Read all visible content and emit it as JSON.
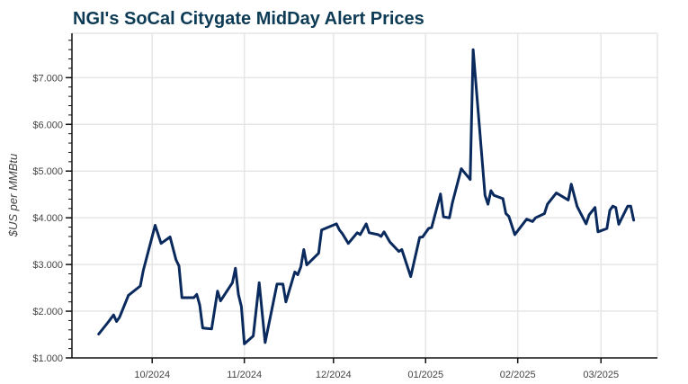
{
  "chart_data": {
    "type": "line",
    "title": "NGI's SoCal Citygate MidDay Alert Prices",
    "xlabel": "",
    "ylabel": "$US per MMBtu",
    "xlim": [
      "2024-09-04",
      "2025-03-20"
    ],
    "ylim": [
      1.0,
      7.95
    ],
    "grid": true,
    "line_color": "#0a2a5e",
    "title_color": "#0d3b55",
    "y_ticks": [
      {
        "value": 1,
        "label": "$1.000"
      },
      {
        "value": 2,
        "label": "$2.000"
      },
      {
        "value": 3,
        "label": "$3.000"
      },
      {
        "value": 4,
        "label": "$4.000"
      },
      {
        "value": 5,
        "label": "$5.000"
      },
      {
        "value": 6,
        "label": "$6.000"
      },
      {
        "value": 7,
        "label": "$7.000"
      }
    ],
    "x_ticks": [
      {
        "date": "2024-10-01",
        "label": "10/2024"
      },
      {
        "date": "2024-11-01",
        "label": "11/2024"
      },
      {
        "date": "2024-12-01",
        "label": "12/2024"
      },
      {
        "date": "2025-01-01",
        "label": "01/2025"
      },
      {
        "date": "2025-02-01",
        "label": "02/2025"
      },
      {
        "date": "2025-03-01",
        "label": "03/2025"
      }
    ],
    "series": [
      {
        "points": [
          [
            "2024-09-13",
            1.51
          ],
          [
            "2024-09-16",
            1.75
          ],
          [
            "2024-09-18",
            1.92
          ],
          [
            "2024-09-19",
            1.78
          ],
          [
            "2024-09-20",
            1.87
          ],
          [
            "2024-09-23",
            2.34
          ],
          [
            "2024-09-27",
            2.54
          ],
          [
            "2024-09-28",
            2.87
          ],
          [
            "2024-10-02",
            3.84
          ],
          [
            "2024-10-04",
            3.45
          ],
          [
            "2024-10-07",
            3.59
          ],
          [
            "2024-10-09",
            3.1
          ],
          [
            "2024-10-10",
            2.97
          ],
          [
            "2024-10-11",
            2.29
          ],
          [
            "2024-10-15",
            2.29
          ],
          [
            "2024-10-16",
            2.36
          ],
          [
            "2024-10-17",
            2.13
          ],
          [
            "2024-10-18",
            1.64
          ],
          [
            "2024-10-21",
            1.62
          ],
          [
            "2024-10-23",
            2.43
          ],
          [
            "2024-10-24",
            2.22
          ],
          [
            "2024-10-28",
            2.61
          ],
          [
            "2024-10-29",
            2.92
          ],
          [
            "2024-10-30",
            2.36
          ],
          [
            "2024-10-31",
            2.1
          ],
          [
            "2024-11-01",
            1.3
          ],
          [
            "2024-11-04",
            1.47
          ],
          [
            "2024-11-06",
            2.61
          ],
          [
            "2024-11-08",
            1.33
          ],
          [
            "2024-11-12",
            2.58
          ],
          [
            "2024-11-14",
            2.58
          ],
          [
            "2024-11-15",
            2.2
          ],
          [
            "2024-11-18",
            2.84
          ],
          [
            "2024-11-19",
            2.78
          ],
          [
            "2024-11-20",
            2.95
          ],
          [
            "2024-11-21",
            3.32
          ],
          [
            "2024-11-22",
            2.99
          ],
          [
            "2024-11-26",
            3.24
          ],
          [
            "2024-11-27",
            3.74
          ],
          [
            "2024-12-02",
            3.87
          ],
          [
            "2024-12-03",
            3.74
          ],
          [
            "2024-12-04",
            3.66
          ],
          [
            "2024-12-06",
            3.45
          ],
          [
            "2024-12-09",
            3.68
          ],
          [
            "2024-12-10",
            3.64
          ],
          [
            "2024-12-12",
            3.87
          ],
          [
            "2024-12-13",
            3.68
          ],
          [
            "2024-12-16",
            3.64
          ],
          [
            "2024-12-17",
            3.6
          ],
          [
            "2024-12-18",
            3.7
          ],
          [
            "2024-12-20",
            3.48
          ],
          [
            "2024-12-23",
            3.28
          ],
          [
            "2024-12-24",
            3.32
          ],
          [
            "2024-12-27",
            2.74
          ],
          [
            "2024-12-30",
            3.58
          ],
          [
            "2024-12-31",
            3.59
          ],
          [
            "2025-01-02",
            3.77
          ],
          [
            "2025-01-03",
            3.79
          ],
          [
            "2025-01-06",
            4.51
          ],
          [
            "2025-01-07",
            4.02
          ],
          [
            "2025-01-09",
            4.0
          ],
          [
            "2025-01-10",
            4.32
          ],
          [
            "2025-01-13",
            5.05
          ],
          [
            "2025-01-16",
            4.82
          ],
          [
            "2025-01-17",
            7.6
          ],
          [
            "2025-01-21",
            4.48
          ],
          [
            "2025-01-22",
            4.29
          ],
          [
            "2025-01-23",
            4.58
          ],
          [
            "2025-01-24",
            4.48
          ],
          [
            "2025-01-27",
            4.41
          ],
          [
            "2025-01-28",
            4.09
          ],
          [
            "2025-01-29",
            4.03
          ],
          [
            "2025-01-31",
            3.64
          ],
          [
            "2025-02-04",
            3.97
          ],
          [
            "2025-02-06",
            3.92
          ],
          [
            "2025-02-07",
            4.0
          ],
          [
            "2025-02-10",
            4.09
          ],
          [
            "2025-02-11",
            4.29
          ],
          [
            "2025-02-14",
            4.53
          ],
          [
            "2025-02-18",
            4.38
          ],
          [
            "2025-02-19",
            4.72
          ],
          [
            "2025-02-21",
            4.24
          ],
          [
            "2025-02-24",
            3.87
          ],
          [
            "2025-02-25",
            4.06
          ],
          [
            "2025-02-27",
            4.22
          ],
          [
            "2025-02-28",
            3.7
          ],
          [
            "2025-03-03",
            3.77
          ],
          [
            "2025-03-04",
            4.16
          ],
          [
            "2025-03-05",
            4.25
          ],
          [
            "2025-03-06",
            4.22
          ],
          [
            "2025-03-07",
            3.86
          ],
          [
            "2025-03-10",
            4.25
          ],
          [
            "2025-03-11",
            4.25
          ],
          [
            "2025-03-12",
            3.95
          ]
        ]
      }
    ]
  }
}
